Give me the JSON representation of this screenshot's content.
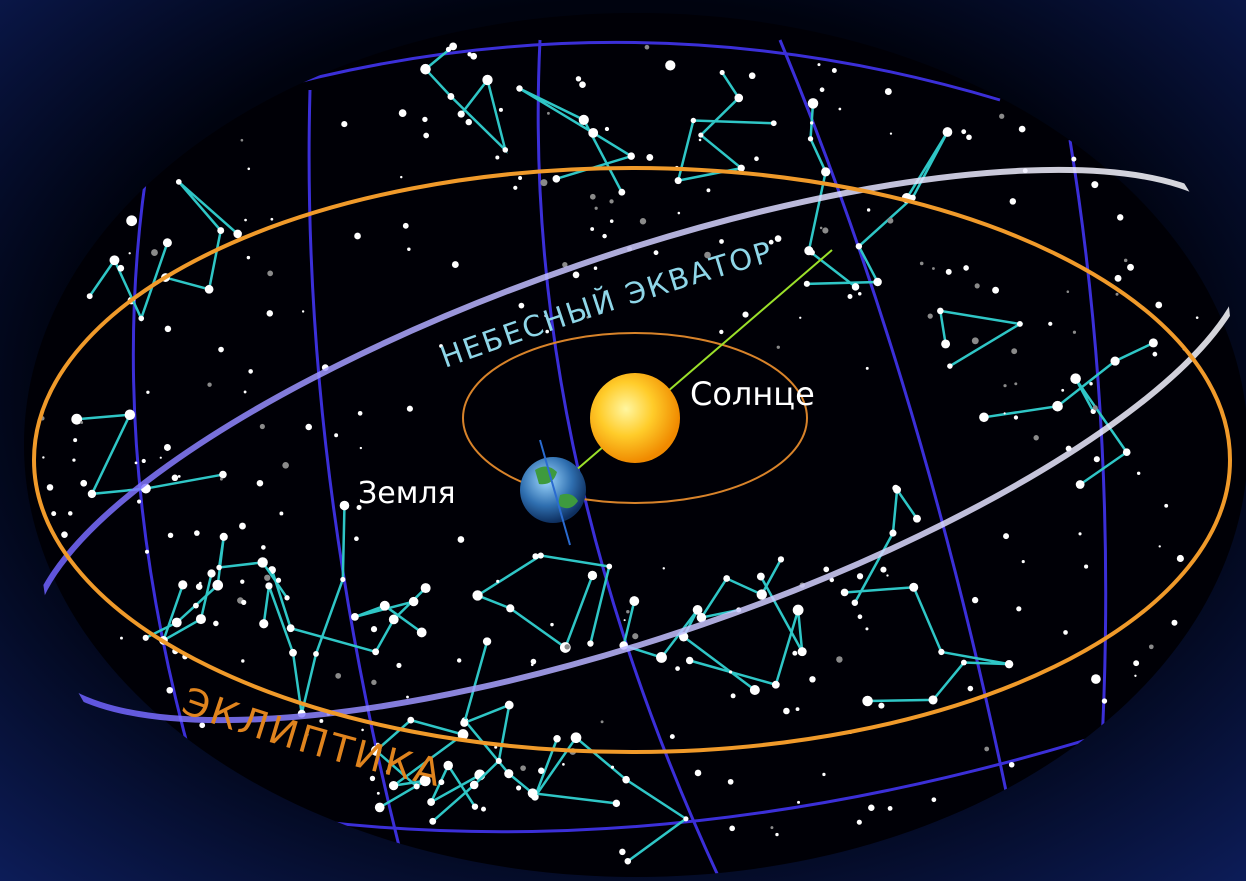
{
  "labels": {
    "celestial_equator": "НЕБЕСНЫЙ ЭКВАТОР",
    "sun": "Солнце",
    "earth": "Земля",
    "ecliptic": "ЭКЛИПТИКА"
  }
}
